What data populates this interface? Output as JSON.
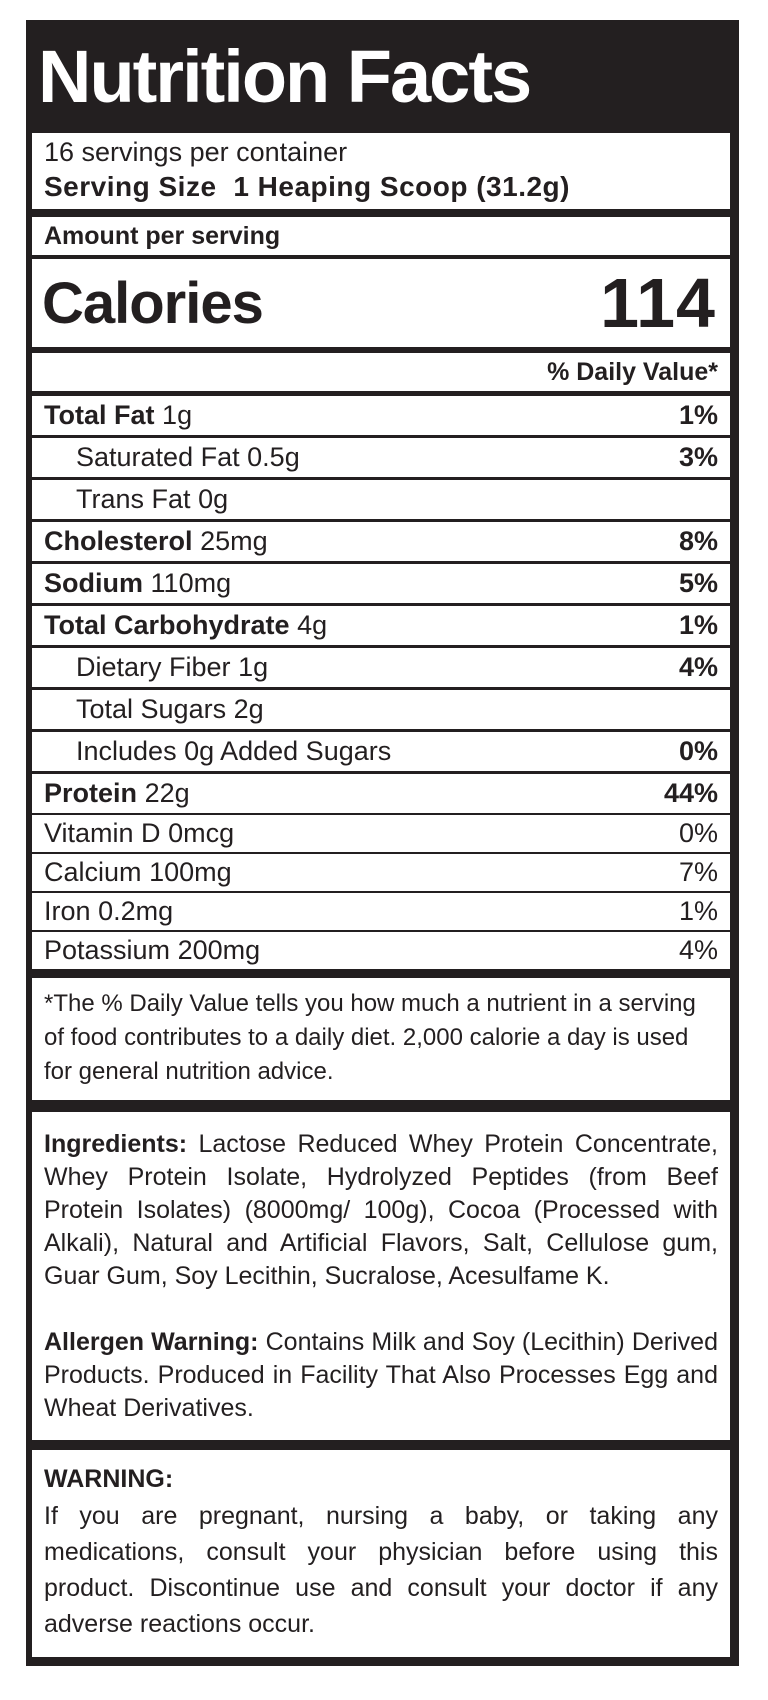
{
  "colors": {
    "ink": "#231f20",
    "paper": "#ffffff"
  },
  "label": {
    "title": "Nutrition Facts",
    "servings_per_container": "16 servings per container",
    "serving_size_label": "Serving Size",
    "serving_size_value": "1 Heaping Scoop (31.2g)",
    "amount_per_serving": "Amount per serving",
    "calories_label": "Calories",
    "calories_value": "114",
    "daily_value_header": "% Daily Value*",
    "nutrients": [
      {
        "name": "Total Fat",
        "amount": "1g",
        "dv": "1%",
        "name_bold": true,
        "dv_bold": true,
        "indent": false
      },
      {
        "name": "Saturated Fat",
        "amount": "0.5g",
        "dv": "3%",
        "name_bold": false,
        "dv_bold": true,
        "indent": true
      },
      {
        "name": "Trans Fat",
        "amount": "0g",
        "dv": "",
        "name_bold": false,
        "dv_bold": false,
        "indent": true
      },
      {
        "name": "Cholesterol",
        "amount": "25mg",
        "dv": "8%",
        "name_bold": true,
        "dv_bold": true,
        "indent": false
      },
      {
        "name": "Sodium",
        "amount": "110mg",
        "dv": "5%",
        "name_bold": true,
        "dv_bold": true,
        "indent": false
      },
      {
        "name": "Total Carbohydrate",
        "amount": "4g",
        "dv": "1%",
        "name_bold": true,
        "dv_bold": true,
        "indent": false
      },
      {
        "name": "Dietary Fiber",
        "amount": "1g",
        "dv": "4%",
        "name_bold": false,
        "dv_bold": true,
        "indent": true
      },
      {
        "name": "Total Sugars",
        "amount": "2g",
        "dv": "",
        "name_bold": false,
        "dv_bold": false,
        "indent": true
      },
      {
        "name": "Includes 0g Added Sugars",
        "amount": "",
        "dv": "0%",
        "name_bold": false,
        "dv_bold": true,
        "indent": true
      },
      {
        "name": "Protein",
        "amount": "22g",
        "dv": "44%",
        "name_bold": true,
        "dv_bold": true,
        "indent": false
      },
      {
        "name": "Vitamin D",
        "amount": "0mcg",
        "dv": "0%",
        "name_bold": false,
        "dv_bold": false,
        "indent": false,
        "group": "vitamin",
        "divider_above": true
      },
      {
        "name": "Calcium",
        "amount": "100mg",
        "dv": "7%",
        "name_bold": false,
        "dv_bold": false,
        "indent": false,
        "group": "vitamin"
      },
      {
        "name": "Iron",
        "amount": "0.2mg",
        "dv": "1%",
        "name_bold": false,
        "dv_bold": false,
        "indent": false,
        "group": "vitamin"
      },
      {
        "name": "Potassium",
        "amount": "200mg",
        "dv": "4%",
        "name_bold": false,
        "dv_bold": false,
        "indent": false,
        "group": "vitamin"
      }
    ],
    "footnote": "*The % Daily Value tells you how much a nutrient in a serving of food contributes to a daily diet. 2,000 calorie a day is used for general nutrition advice.",
    "ingredients_label": "Ingredients:",
    "ingredients_text": "Lactose Reduced Whey Protein Concentrate, Whey Protein Isolate, Hydrolyzed Peptides (from Beef Protein Isolates) (8000mg/ 100g), Cocoa (Processed with Alkali), Natural and Artificial Flavors, Salt, Cellulose gum, Guar Gum, Soy Lecithin, Sucralose, Acesulfame K.",
    "allergen_label": "Allergen Warning:",
    "allergen_text": "Contains Milk and Soy (Lecithin) Derived Products. Produced in Facility That Also Processes Egg and Wheat Derivatives.",
    "warning_label": "WARNING:",
    "warning_text": "If you are pregnant, nursing a baby, or taking any medications, consult your physician before using this product. Discontinue use and consult your doctor if any adverse reactions occur."
  }
}
